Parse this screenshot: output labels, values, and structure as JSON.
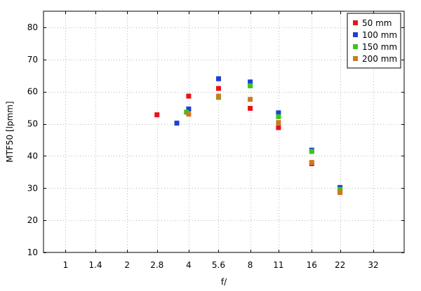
{
  "chart_data": {
    "type": "scatter",
    "title": "",
    "xlabel": "f/",
    "ylabel": "MTF50 [lpmm]",
    "x_scale": "log2",
    "x_ticks": [
      "1",
      "1.4",
      "2",
      "2.8",
      "4",
      "5.6",
      "8",
      "11",
      "16",
      "22",
      "32"
    ],
    "x_tick_values": [
      1,
      1.4,
      2,
      2.8,
      4,
      5.6,
      8,
      11,
      16,
      22,
      32
    ],
    "xlim": [
      0.78,
      45.3
    ],
    "y_ticks": [
      10,
      20,
      30,
      40,
      50,
      60,
      70,
      80
    ],
    "ylim": [
      10,
      85
    ],
    "grid": true,
    "legend_position": "top-right",
    "series": [
      {
        "name": " 50 mm",
        "color": "#e8141a",
        "x": [
          2.8,
          4,
          5.6,
          8,
          11,
          16,
          22
        ],
        "y": [
          52.8,
          58.6,
          61.0,
          54.8,
          48.8,
          37.6,
          29.0
        ]
      },
      {
        "name": "100 mm",
        "color": "#1f3fd8",
        "x": [
          3.5,
          4,
          5.6,
          8,
          11,
          16,
          22
        ],
        "y": [
          50.2,
          54.6,
          64.0,
          63.0,
          53.4,
          41.8,
          30.2
        ]
      },
      {
        "name": "150 mm",
        "color": "#3cc41e",
        "x": [
          3.9,
          5.6,
          8,
          11,
          16,
          22
        ],
        "y": [
          53.6,
          58.2,
          61.8,
          52.2,
          41.4,
          29.6
        ]
      },
      {
        "name": "200 mm",
        "color": "#cc7a22",
        "x": [
          4,
          5.6,
          8,
          11,
          16,
          22
        ],
        "y": [
          53.0,
          58.6,
          57.6,
          50.4,
          38.0,
          28.6
        ]
      }
    ]
  }
}
